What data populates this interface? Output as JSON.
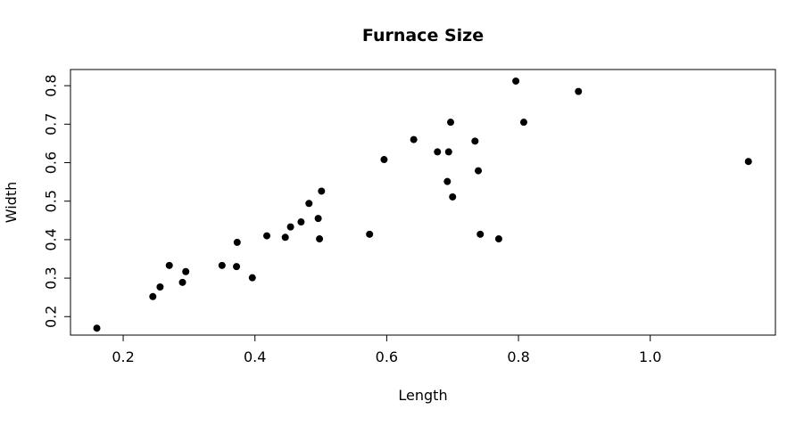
{
  "chart_data": {
    "type": "scatter",
    "title": "Furnace Size",
    "xlabel": "Length",
    "ylabel": "Width",
    "xlim": [
      0.12,
      1.19
    ],
    "ylim": [
      0.152,
      0.842
    ],
    "xticks": [
      0.2,
      0.4,
      0.6,
      0.8,
      1.0
    ],
    "xtick_labels": [
      "0.2",
      "0.4",
      "0.6",
      "0.8",
      "1.0"
    ],
    "yticks": [
      0.2,
      0.3,
      0.4,
      0.5,
      0.6,
      0.7,
      0.8
    ],
    "ytick_labels": [
      "0.2",
      "0.3",
      "0.4",
      "0.5",
      "0.6",
      "0.7",
      "0.8"
    ],
    "grid": false,
    "legend": "none",
    "point_color": "#000000",
    "points": [
      {
        "x": 0.16,
        "y": 0.17
      },
      {
        "x": 0.245,
        "y": 0.252
      },
      {
        "x": 0.256,
        "y": 0.277
      },
      {
        "x": 0.27,
        "y": 0.333
      },
      {
        "x": 0.29,
        "y": 0.289
      },
      {
        "x": 0.295,
        "y": 0.317
      },
      {
        "x": 0.35,
        "y": 0.333
      },
      {
        "x": 0.372,
        "y": 0.33
      },
      {
        "x": 0.373,
        "y": 0.393
      },
      {
        "x": 0.396,
        "y": 0.301
      },
      {
        "x": 0.418,
        "y": 0.41
      },
      {
        "x": 0.446,
        "y": 0.406
      },
      {
        "x": 0.454,
        "y": 0.433
      },
      {
        "x": 0.47,
        "y": 0.446
      },
      {
        "x": 0.482,
        "y": 0.494
      },
      {
        "x": 0.496,
        "y": 0.455
      },
      {
        "x": 0.498,
        "y": 0.402
      },
      {
        "x": 0.501,
        "y": 0.526
      },
      {
        "x": 0.574,
        "y": 0.414
      },
      {
        "x": 0.596,
        "y": 0.608
      },
      {
        "x": 0.641,
        "y": 0.66
      },
      {
        "x": 0.677,
        "y": 0.628
      },
      {
        "x": 0.692,
        "y": 0.551
      },
      {
        "x": 0.694,
        "y": 0.628
      },
      {
        "x": 0.697,
        "y": 0.705
      },
      {
        "x": 0.7,
        "y": 0.511
      },
      {
        "x": 0.734,
        "y": 0.656
      },
      {
        "x": 0.739,
        "y": 0.579
      },
      {
        "x": 0.742,
        "y": 0.414
      },
      {
        "x": 0.77,
        "y": 0.402
      },
      {
        "x": 0.796,
        "y": 0.812
      },
      {
        "x": 0.808,
        "y": 0.705
      },
      {
        "x": 0.891,
        "y": 0.785
      },
      {
        "x": 1.149,
        "y": 0.603
      }
    ]
  }
}
